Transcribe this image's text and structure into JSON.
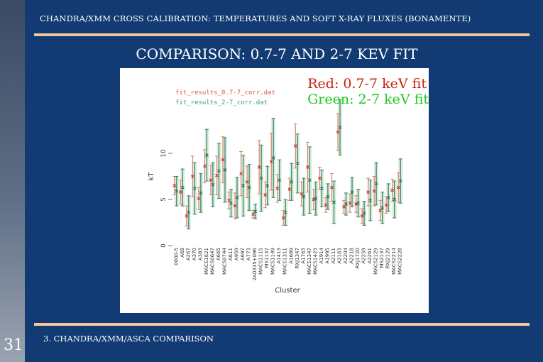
{
  "header": {
    "title": "CHANDRA/XMM CROSS CALIBRATION: TEMPERATURES AND SOFT X-RAY FLUXES (BONAMENTE)"
  },
  "slide": {
    "title": "COMPARISON: 0.7-7 AND 2-7 KEV FIT"
  },
  "figure": {
    "legend_red": "Red: 0.7-7 keV fit",
    "legend_green": "Green: 2-7 keV fit",
    "file_red": "fit_results_0.7-7_corr.dat",
    "file_green": "fit_results_2-7_corr.dat"
  },
  "footer": {
    "section": "3. CHANDRA/XMM/ASCA COMPARISON",
    "slide_number": "31"
  },
  "colors": {
    "background": "#123a73",
    "rule": "#f3c79b",
    "red_series": "#c8230e",
    "green_series": "#20c820"
  },
  "chart_data": {
    "type": "scatter",
    "xlabel": "Cluster",
    "ylabel": "kT",
    "y_ticks": [
      "0",
      "5",
      "10"
    ],
    "ylim": [
      0,
      15
    ],
    "categories": [
      "0000-5",
      "A68",
      "A267",
      "A370",
      "A383",
      "MACS1621",
      "MACS0647",
      "A665",
      "MACS0744",
      "A611",
      "A959",
      "A697",
      "A773",
      "2A0335+096",
      "MACS1115",
      "MS1137",
      "MACS1149",
      "A1413",
      "MACS1311",
      "A1689",
      "RXJ1347",
      "A1763",
      "MACS1347",
      "MACS1423",
      "A1914",
      "A1995",
      "A2111",
      "A2163",
      "A2204",
      "A2218",
      "RXJ1720",
      "A2259",
      "A2261",
      "MACS2129",
      "MS2137",
      "RXJ2129",
      "MACS2214",
      "MACS2228"
    ],
    "series": [
      {
        "name": "fit_results_0.7-7_corr.dat",
        "values": [
          6.5,
          5.8,
          3.2,
          7.5,
          5.1,
          8.6,
          7.1,
          7.6,
          9.3,
          4.9,
          4.3,
          7.8,
          6.9,
          3.4,
          8.5,
          5.5,
          9.1,
          6.2,
          3.0,
          6.1,
          10.8,
          5.6,
          8.5,
          5.0,
          7.3,
          4.4,
          6.3,
          12.3,
          4.2,
          4.6,
          4.5,
          3.2,
          5.8,
          5.9,
          3.8,
          4.4,
          6.0,
          6.3
        ],
        "errors": [
          1.0,
          1.3,
          1.1,
          2.2,
          1.2,
          1.8,
          1.6,
          2.1,
          2.5,
          0.9,
          1.4,
          2.4,
          1.7,
          0.4,
          2.9,
          1.4,
          3.1,
          1.5,
          0.8,
          1.2,
          2.4,
          1.3,
          2.7,
          1.1,
          1.2,
          0.8,
          1.5,
          2.0,
          0.7,
          1.0,
          0.9,
          0.8,
          1.5,
          1.6,
          1.1,
          0.9,
          1.2,
          1.6
        ]
      },
      {
        "name": "fit_results_2-7_corr.dat",
        "values": [
          5.9,
          6.3,
          3.6,
          6.2,
          5.7,
          9.8,
          6.6,
          8.1,
          8.2,
          4.6,
          5.2,
          6.5,
          6.3,
          3.7,
          7.3,
          6.5,
          9.5,
          7.1,
          3.6,
          6.9,
          8.9,
          5.3,
          7.1,
          5.1,
          6.2,
          5.3,
          4.7,
          12.8,
          4.5,
          5.8,
          4.6,
          3.5,
          4.9,
          6.7,
          4.1,
          5.2,
          5.0,
          7.0
        ],
        "errors": [
          1.6,
          2.0,
          1.8,
          2.8,
          2.1,
          2.8,
          2.4,
          3.0,
          3.5,
          1.5,
          2.2,
          3.3,
          2.5,
          0.8,
          3.6,
          2.1,
          4.3,
          2.2,
          1.4,
          2.0,
          3.2,
          2.0,
          3.6,
          1.8,
          2.0,
          1.4,
          2.3,
          3.0,
          1.2,
          1.6,
          1.5,
          1.3,
          2.2,
          2.3,
          1.7,
          1.5,
          2.0,
          2.4
        ]
      }
    ]
  }
}
